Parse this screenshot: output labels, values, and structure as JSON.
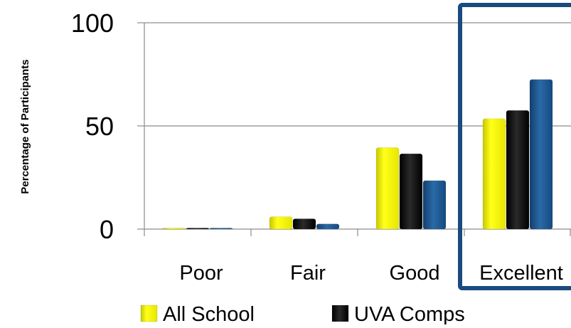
{
  "chart_data": {
    "type": "bar",
    "title": "",
    "xlabel": "",
    "ylabel": "Percentage of Participants",
    "ylim": [
      0,
      100
    ],
    "yticks": [
      0,
      50,
      100
    ],
    "categories": [
      "Poor",
      "Fair",
      "Good",
      "Excellent"
    ],
    "series": [
      {
        "name": "All School",
        "values": [
          0.5,
          6,
          39.5,
          53.5
        ],
        "color": "#ffff00"
      },
      {
        "name": "UVA Comps",
        "values": [
          0.4,
          5,
          36.5,
          57.5
        ],
        "color": "#000000"
      },
      {
        "name": "",
        "values": [
          0.2,
          2.5,
          23.5,
          72.5
        ],
        "color": "#1f5a96"
      }
    ],
    "grid": "horizontal",
    "legend_position": "bottom",
    "highlight": {
      "category": "Excellent",
      "color": "#1a4a7e"
    }
  }
}
